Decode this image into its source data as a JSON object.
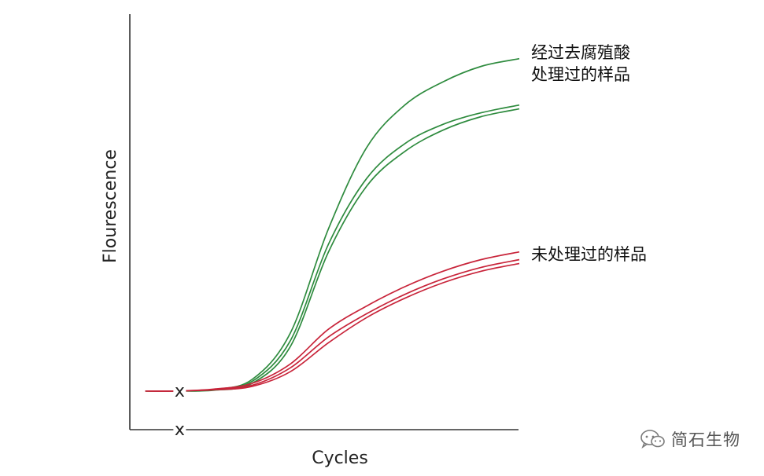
{
  "chart_data": {
    "type": "line",
    "xlabel": "Cycles",
    "ylabel": "Flourescence",
    "grid": false,
    "xlim": [
      0,
      100
    ],
    "ylim": [
      0,
      100
    ],
    "series": [
      {
        "group": "treated",
        "color": "#2e8b3e",
        "points": [
          [
            2,
            10
          ],
          [
            10,
            10
          ],
          [
            20,
            10.4
          ],
          [
            30,
            13
          ],
          [
            40,
            25
          ],
          [
            50,
            52
          ],
          [
            60,
            73
          ],
          [
            70,
            84
          ],
          [
            80,
            90
          ],
          [
            90,
            94
          ],
          [
            100,
            96
          ]
        ]
      },
      {
        "group": "treated",
        "color": "#2e8b3e",
        "points": [
          [
            2,
            10
          ],
          [
            10,
            10
          ],
          [
            20,
            10.3
          ],
          [
            30,
            12.5
          ],
          [
            40,
            23
          ],
          [
            50,
            48
          ],
          [
            60,
            65
          ],
          [
            70,
            74
          ],
          [
            80,
            79
          ],
          [
            90,
            82
          ],
          [
            100,
            84
          ]
        ]
      },
      {
        "group": "treated",
        "color": "#2e8b3e",
        "points": [
          [
            2,
            10
          ],
          [
            10,
            10
          ],
          [
            20,
            10.2
          ],
          [
            30,
            12
          ],
          [
            40,
            21.5
          ],
          [
            50,
            46
          ],
          [
            60,
            63
          ],
          [
            70,
            72
          ],
          [
            80,
            77.5
          ],
          [
            90,
            81
          ],
          [
            100,
            83
          ]
        ]
      },
      {
        "group": "untreated",
        "color": "#c8243a",
        "points": [
          [
            2,
            10
          ],
          [
            10,
            10
          ],
          [
            20,
            10.5
          ],
          [
            30,
            12
          ],
          [
            40,
            17
          ],
          [
            50,
            26
          ],
          [
            60,
            32
          ],
          [
            70,
            37
          ],
          [
            80,
            41
          ],
          [
            90,
            44
          ],
          [
            100,
            46
          ]
        ]
      },
      {
        "group": "untreated",
        "color": "#c8243a",
        "points": [
          [
            2,
            10
          ],
          [
            10,
            10
          ],
          [
            20,
            10.4
          ],
          [
            30,
            11.5
          ],
          [
            40,
            16
          ],
          [
            50,
            24
          ],
          [
            60,
            30
          ],
          [
            70,
            35
          ],
          [
            80,
            39
          ],
          [
            90,
            42
          ],
          [
            100,
            44
          ]
        ]
      },
      {
        "group": "untreated",
        "color": "#c8243a",
        "points": [
          [
            2,
            10
          ],
          [
            10,
            10
          ],
          [
            20,
            10.3
          ],
          [
            30,
            11.2
          ],
          [
            40,
            15
          ],
          [
            50,
            22.5
          ],
          [
            60,
            29
          ],
          [
            70,
            34
          ],
          [
            80,
            38
          ],
          [
            90,
            41
          ],
          [
            100,
            43
          ]
        ]
      }
    ],
    "annotations": [
      {
        "group": "treated",
        "lines": [
          "经过去腐殖酸",
          "处理过的样品"
        ]
      },
      {
        "group": "untreated",
        "lines": [
          "未处理过的样品"
        ]
      }
    ],
    "markers": [
      {
        "text": "x",
        "x": 11,
        "y": 10
      },
      {
        "text": "x",
        "x": 11,
        "y": 0
      }
    ]
  },
  "watermark": {
    "text": "简石生物",
    "icon": "wechat-icon"
  }
}
